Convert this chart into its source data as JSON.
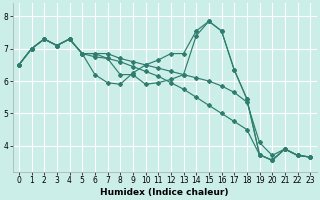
{
  "title": "",
  "xlabel": "Humidex (Indice chaleur)",
  "xlim": [
    -0.5,
    23.5
  ],
  "ylim": [
    3.2,
    8.4
  ],
  "yticks": [
    4,
    5,
    6,
    7,
    8
  ],
  "xticks": [
    0,
    1,
    2,
    3,
    4,
    5,
    6,
    7,
    8,
    9,
    10,
    11,
    12,
    13,
    14,
    15,
    16,
    17,
    18,
    19,
    20,
    21,
    22,
    23
  ],
  "bg_color": "#cceee8",
  "grid_color": "#ffffff",
  "line_color": "#2e7d6e",
  "series": [
    {
      "x": [
        0,
        1,
        2,
        3,
        4,
        5,
        6,
        7,
        8,
        9,
        10,
        11,
        12,
        13,
        14,
        15,
        16,
        17,
        18,
        19,
        20,
        21,
        22,
        23
      ],
      "y": [
        6.5,
        7.0,
        7.3,
        7.1,
        7.3,
        6.85,
        6.2,
        5.95,
        5.9,
        6.25,
        6.5,
        6.65,
        6.85,
        6.85,
        7.55,
        7.85,
        7.55,
        6.35,
        5.45,
        3.72,
        3.55,
        3.9,
        3.7,
        3.65
      ]
    },
    {
      "x": [
        0,
        1,
        2,
        3,
        4,
        5,
        6,
        7,
        8,
        9,
        10,
        11,
        12,
        13,
        14,
        15,
        16,
        17,
        18,
        19,
        20,
        21,
        22,
        23
      ],
      "y": [
        6.5,
        7.0,
        7.3,
        7.1,
        7.3,
        6.85,
        6.75,
        6.7,
        6.2,
        6.2,
        5.9,
        5.95,
        6.05,
        6.2,
        7.4,
        7.85,
        7.55,
        6.35,
        5.45,
        3.72,
        3.55,
        3.9,
        3.7,
        3.65
      ]
    },
    {
      "x": [
        0,
        1,
        2,
        3,
        4,
        5,
        6,
        7,
        8,
        9,
        10,
        11,
        12,
        13,
        14,
        15,
        16,
        17,
        18,
        19,
        20,
        21,
        22,
        23
      ],
      "y": [
        6.5,
        7.0,
        7.3,
        7.1,
        7.3,
        6.85,
        6.85,
        6.7,
        6.6,
        6.45,
        6.3,
        6.15,
        5.95,
        5.75,
        5.5,
        5.25,
        5.0,
        4.75,
        4.5,
        3.72,
        3.55,
        3.9,
        3.7,
        3.65
      ]
    },
    {
      "x": [
        0,
        1,
        2,
        3,
        4,
        5,
        6,
        7,
        8,
        9,
        10,
        11,
        12,
        13,
        14,
        15,
        16,
        17,
        18,
        19,
        20,
        21,
        22,
        23
      ],
      "y": [
        6.5,
        7.0,
        7.3,
        7.1,
        7.3,
        6.85,
        6.85,
        6.85,
        6.7,
        6.6,
        6.5,
        6.4,
        6.3,
        6.2,
        6.1,
        6.0,
        5.85,
        5.65,
        5.35,
        4.1,
        3.7,
        3.9,
        3.7,
        3.65
      ]
    }
  ]
}
